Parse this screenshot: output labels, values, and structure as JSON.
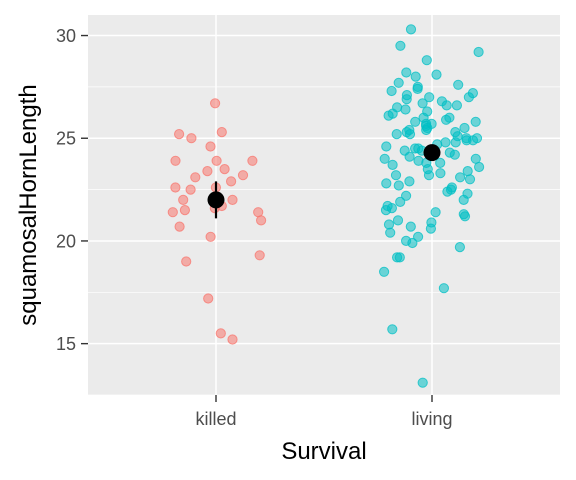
{
  "chart_data": {
    "type": "scatter",
    "xlabel": "Survival",
    "ylabel": "squamosalHornLength",
    "categories": [
      "killed",
      "living"
    ],
    "ylim": [
      12.5,
      31
    ],
    "yticks": [
      15,
      20,
      25,
      30
    ],
    "grid": true,
    "legend": "none",
    "series": [
      {
        "category": "killed",
        "color": "#F8766D",
        "values": [
          26.7,
          25.3,
          25.2,
          25.0,
          24.6,
          23.9,
          23.9,
          23.9,
          23.5,
          23.4,
          23.1,
          23.2,
          22.9,
          22.6,
          22.6,
          22.5,
          22.0,
          22.0,
          21.7,
          21.6,
          21.5,
          21.4,
          21.4,
          21.0,
          20.7,
          20.2,
          19.3,
          19.0,
          17.2,
          15.5,
          15.2
        ]
      },
      {
        "category": "living",
        "color": "#00BFC4",
        "values": [
          30.3,
          29.5,
          29.2,
          28.8,
          28.2,
          28.1,
          28.0,
          27.7,
          27.6,
          27.5,
          27.4,
          27.3,
          27.2,
          27.1,
          27.0,
          27.0,
          26.9,
          26.8,
          26.7,
          26.6,
          26.6,
          26.5,
          26.4,
          26.3,
          26.2,
          26.1,
          26.0,
          26.0,
          25.9,
          25.8,
          25.8,
          25.7,
          25.7,
          25.6,
          25.5,
          25.5,
          25.4,
          25.4,
          25.3,
          25.3,
          25.2,
          25.2,
          25.1,
          25.0,
          25.0,
          24.9,
          24.9,
          24.8,
          24.8,
          24.7,
          24.6,
          24.5,
          24.5,
          24.4,
          24.4,
          24.3,
          24.2,
          24.1,
          24.0,
          24.0,
          23.9,
          23.8,
          23.8,
          23.7,
          23.6,
          23.5,
          23.4,
          23.3,
          23.2,
          23.2,
          23.1,
          23.0,
          22.9,
          22.8,
          22.7,
          22.6,
          22.5,
          22.4,
          22.3,
          22.2,
          22.0,
          21.9,
          21.7,
          21.6,
          21.5,
          21.4,
          21.3,
          21.2,
          21.0,
          20.9,
          20.8,
          20.7,
          20.6,
          20.4,
          20.2,
          20.0,
          19.9,
          19.7,
          19.2,
          19.2,
          18.5,
          17.7,
          15.7,
          13.1
        ]
      }
    ],
    "summary": [
      {
        "category": "killed",
        "mean": 22.0,
        "error_low": 21.1,
        "error_high": 22.9
      },
      {
        "category": "living",
        "mean": 24.3,
        "error_low": 24.0,
        "error_high": 24.6
      }
    ]
  }
}
